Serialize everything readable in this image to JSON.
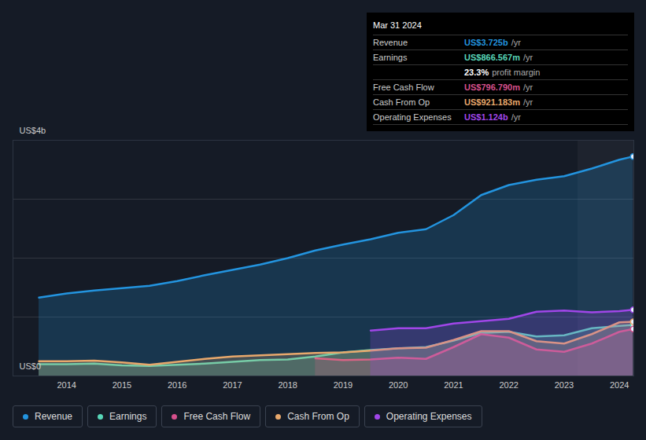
{
  "chart_data": {
    "type": "area",
    "x": [
      2013.5,
      2014,
      2014.5,
      2015,
      2015.5,
      2016,
      2016.5,
      2017,
      2017.5,
      2018,
      2018.5,
      2019,
      2019.5,
      2020,
      2020.5,
      2021,
      2021.5,
      2022,
      2022.5,
      2023,
      2023.5,
      2024,
      2024.25
    ],
    "xlim": [
      2013.03,
      2024.26
    ],
    "xticks": [
      2014,
      2015,
      2016,
      2017,
      2018,
      2019,
      2020,
      2021,
      2022,
      2023,
      2024
    ],
    "ylim": [
      0,
      4
    ],
    "yticks": [
      {
        "value": 0,
        "label": "US$0"
      },
      {
        "value": 1,
        "label": null
      },
      {
        "value": 2,
        "label": null
      },
      {
        "value": 3,
        "label": null
      },
      {
        "value": 4,
        "label": "US$4b"
      }
    ],
    "grid": true,
    "legend": "bottom",
    "highlight": [
      2023.25,
      2024.26
    ],
    "series": [
      {
        "name": "Revenue",
        "color": "#2394df",
        "values": [
          1.33,
          1.4,
          1.45,
          1.49,
          1.53,
          1.61,
          1.71,
          1.8,
          1.89,
          2.0,
          2.13,
          2.23,
          2.32,
          2.43,
          2.49,
          2.73,
          3.07,
          3.24,
          3.33,
          3.39,
          3.52,
          3.67,
          3.725
        ]
      },
      {
        "name": "Earnings",
        "color": "#58d6b8",
        "values": [
          0.2,
          0.2,
          0.21,
          0.18,
          0.17,
          0.19,
          0.21,
          0.24,
          0.27,
          0.28,
          0.33,
          0.4,
          0.44,
          0.47,
          0.49,
          0.6,
          0.73,
          0.75,
          0.67,
          0.69,
          0.81,
          0.85,
          0.867
        ]
      },
      {
        "name": "Free Cash Flow",
        "color": "#d6508c",
        "values": [
          null,
          null,
          null,
          null,
          null,
          null,
          null,
          null,
          null,
          null,
          0.3,
          0.27,
          0.28,
          0.31,
          0.29,
          0.49,
          0.71,
          0.65,
          0.45,
          0.41,
          0.55,
          0.75,
          0.797
        ]
      },
      {
        "name": "Cash From Op",
        "color": "#e8a86c",
        "values": [
          0.25,
          0.25,
          0.26,
          0.23,
          0.19,
          0.24,
          0.29,
          0.33,
          0.35,
          0.37,
          0.39,
          0.4,
          0.43,
          0.47,
          0.48,
          0.61,
          0.76,
          0.76,
          0.59,
          0.55,
          0.71,
          0.91,
          0.921
        ]
      },
      {
        "name": "Operating Expenses",
        "color": "#a046e8",
        "values": [
          null,
          null,
          null,
          null,
          null,
          null,
          null,
          null,
          null,
          null,
          null,
          null,
          0.77,
          0.81,
          0.81,
          0.89,
          0.93,
          0.97,
          1.09,
          1.11,
          1.08,
          1.1,
          1.124
        ]
      }
    ],
    "tooltip": {
      "title": "Mar 31 2024",
      "rows": [
        {
          "label": "Revenue",
          "value": "US$3.725b",
          "unit": "/yr",
          "color": "#2394df"
        },
        {
          "label": "Earnings",
          "value": "US$866.567m",
          "unit": "/yr",
          "color": "#58d6b8"
        },
        {
          "label": null,
          "value": "23.3%",
          "unit": "profit margin",
          "color": "#ffffff"
        },
        {
          "label": "Free Cash Flow",
          "value": "US$796.790m",
          "unit": "/yr",
          "color": "#d6508c"
        },
        {
          "label": "Cash From Op",
          "value": "US$921.183m",
          "unit": "/yr",
          "color": "#e8a86c"
        },
        {
          "label": "Operating Expenses",
          "value": "US$1.124b",
          "unit": "/yr",
          "color": "#a046e8"
        }
      ]
    }
  }
}
